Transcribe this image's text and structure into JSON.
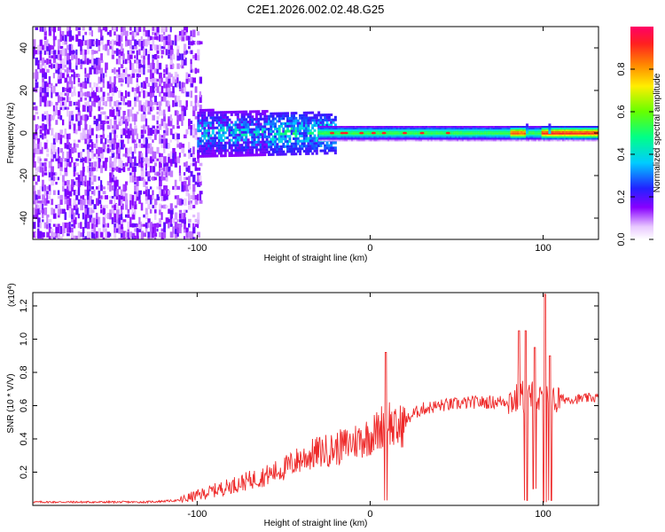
{
  "title": "C2E1.2026.002.02.48.G25",
  "chart_data": [
    {
      "type": "heatmap",
      "name": "spectrogram",
      "xlabel": "Height of straight line (km)",
      "ylabel": "Frequency (Hz)",
      "xlim": [
        -195,
        132
      ],
      "ylim": [
        -50,
        50
      ],
      "x_ticks": [
        -100,
        0,
        100
      ],
      "x_tick_labels": [
        "-100",
        "0",
        "100"
      ],
      "y_ticks": [
        -40,
        -20,
        0,
        20,
        40
      ],
      "y_tick_labels": [
        "-40",
        "-20",
        "0",
        "20",
        "40"
      ],
      "regions": [
        {
          "label": "broadband noise",
          "x_range": [
            -195,
            -100
          ],
          "freq_range": [
            -50,
            50
          ],
          "amplitude": 0.2
        },
        {
          "label": "spreading signal",
          "x_range": [
            -100,
            -30
          ],
          "freq_range": [
            -10,
            10
          ],
          "amplitude": 0.35
        },
        {
          "label": "narrow carrier",
          "x_range": [
            -30,
            132
          ],
          "freq_range": [
            -2,
            2
          ],
          "amplitude": 0.55
        },
        {
          "label": "peak carrier",
          "x_range": [
            100,
            132
          ],
          "freq_range": [
            -1,
            1
          ],
          "amplitude": 0.95
        }
      ],
      "colorbar": {
        "label": "Normalized spectral amplitude",
        "range": [
          0,
          1
        ],
        "ticks": [
          0.0,
          0.2,
          0.4,
          0.6,
          0.8
        ],
        "tick_labels": [
          "0.0",
          "0.2",
          "0.4",
          "0.6",
          "0.8"
        ],
        "colors": [
          "#ffffff",
          "#e8c8ff",
          "#8800ff",
          "#2222ff",
          "#00ccff",
          "#00ff88",
          "#66ff00",
          "#ffee00",
          "#ff8800",
          "#ff2020",
          "#ff0066"
        ]
      }
    },
    {
      "type": "line",
      "name": "snr",
      "xlabel": "Height of straight line (km)",
      "ylabel": "SNR (10 * V/V)",
      "y_scale_label": "(x10",
      "y_scale_exp": "4",
      "y_scale_close": ")",
      "xlim": [
        -195,
        132
      ],
      "ylim": [
        0,
        1.28
      ],
      "x_ticks": [
        -100,
        0,
        100
      ],
      "x_tick_labels": [
        "-100",
        "0",
        "100"
      ],
      "y_ticks": [
        0.2,
        0.4,
        0.6,
        0.8,
        1.0,
        1.2
      ],
      "y_tick_labels": [
        "0.2",
        "0.4",
        "0.6",
        "0.8",
        "1.0",
        "1.2"
      ],
      "series": [
        {
          "name": "SNR",
          "color": "#ee2a2a",
          "x": [
            -195,
            -160,
            -130,
            -110,
            -100,
            -90,
            -80,
            -70,
            -60,
            -50,
            -40,
            -30,
            -20,
            -15,
            -10,
            -5,
            0,
            5,
            8,
            10,
            12,
            15,
            20,
            25,
            30,
            40,
            50,
            60,
            70,
            80,
            85,
            88,
            90,
            92,
            95,
            98,
            100,
            102,
            104,
            106,
            110,
            120,
            132
          ],
          "y": [
            0.02,
            0.02,
            0.02,
            0.03,
            0.06,
            0.09,
            0.12,
            0.15,
            0.18,
            0.22,
            0.28,
            0.32,
            0.34,
            0.36,
            0.38,
            0.4,
            0.42,
            0.45,
            0.5,
            0.55,
            0.48,
            0.45,
            0.5,
            0.55,
            0.58,
            0.6,
            0.61,
            0.62,
            0.62,
            0.63,
            0.64,
            0.66,
            0.62,
            0.65,
            0.66,
            0.63,
            0.62,
            0.66,
            0.64,
            0.62,
            0.64,
            0.64,
            0.65
          ],
          "spikes": [
            {
              "x": 9,
              "y": 0.92,
              "low": 0.03
            },
            {
              "x": 86,
              "y": 1.05,
              "low": 0.6
            },
            {
              "x": 90,
              "y": 1.05,
              "low": 0.03
            },
            {
              "x": 95,
              "y": 0.95,
              "low": 0.1
            },
            {
              "x": 101,
              "y": 1.27,
              "low": 0.02
            },
            {
              "x": 104,
              "y": 0.9,
              "low": 0.03
            }
          ]
        }
      ]
    }
  ]
}
